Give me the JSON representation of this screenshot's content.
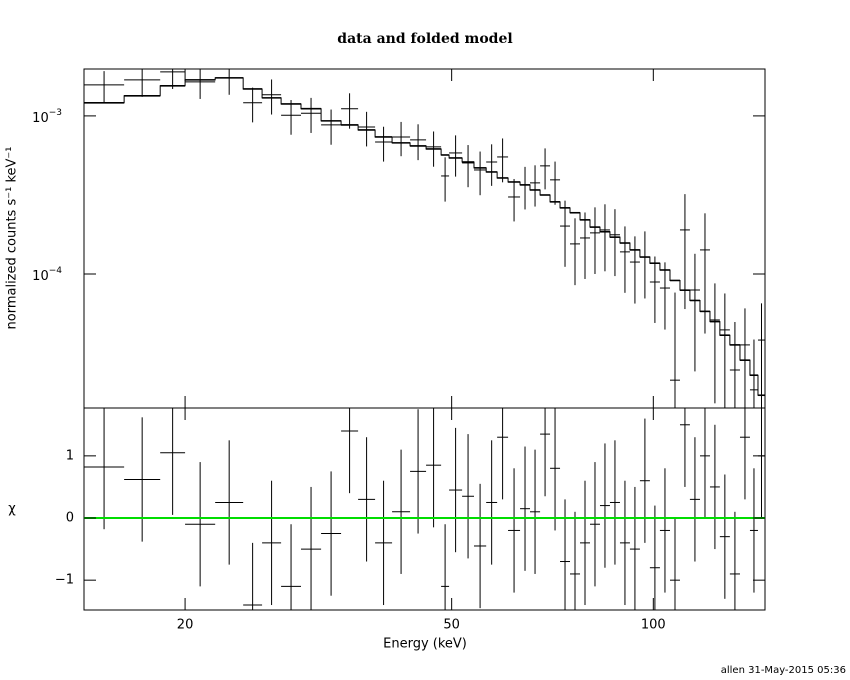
{
  "chart_data": [
    {
      "type": "spectrum",
      "title": "data and folded model",
      "y_label": "normalized counts s⁻¹ keV⁻¹",
      "xscale": "log",
      "yscale": "log",
      "xlim": [
        14.13,
        146.8
      ],
      "ylim": [
        1.42e-05,
        0.00198
      ],
      "yticks": [
        {
          "value": 0.001,
          "label": "10",
          "exponent": "−3"
        },
        {
          "value": 0.0001,
          "label": "10",
          "exponent": "−4"
        }
      ],
      "color": "#000000",
      "x_lo": [
        14.13,
        16.22,
        18.36,
        20,
        22.18,
        24.42,
        26.06,
        27.82,
        29.79,
        31.92,
        34.19,
        36.25,
        38.43,
        40.74,
        43.34,
        45.79,
        48.22,
        49.56,
        51.83,
        53.99,
        56.3,
        58.46,
        60.7,
        63.25,
        65.45,
        67.76,
        70.12,
        72.57,
        75.1,
        77.73,
        80.44,
        83.25,
        86.15,
        89.17,
        92.28,
        95.5,
        98.83,
        102.3,
        105.9,
        109.6,
        113.4,
        117.4,
        121.5,
        125.7,
        130.1,
        134.7,
        139.4,
        143.3
      ],
      "x_hi": [
        16.22,
        18.36,
        20,
        22.18,
        24.42,
        26.06,
        27.82,
        29.79,
        31.92,
        34.19,
        36.25,
        38.43,
        40.74,
        43.34,
        45.79,
        48.22,
        49.56,
        51.83,
        53.99,
        56.3,
        58.46,
        60.7,
        63.25,
        65.45,
        67.76,
        70.12,
        72.57,
        75.1,
        77.73,
        80.44,
        83.25,
        86.15,
        89.17,
        92.28,
        95.5,
        98.83,
        102.3,
        105.9,
        109.6,
        113.4,
        117.4,
        121.5,
        125.7,
        130.1,
        134.7,
        139.4,
        143.3,
        146.8
      ],
      "values": [
        0.00157,
        0.00169,
        0.0019,
        0.00164,
        0.00174,
        0.00121,
        0.00136,
        0.00101,
        0.00104,
        0.000877,
        0.00111,
        0.000851,
        0.000684,
        0.000736,
        0.000705,
        0.000637,
        0.000417,
        0.000583,
        0.000504,
        0.000455,
        0.000511,
        0.00055,
        0.000307,
        0.000366,
        0.000377,
        0.000483,
        0.000394,
        0.000201,
        0.000155,
        0.000169,
        0.000182,
        0.00019,
        0.000177,
        0.000138,
        0.000119,
        0.000128,
        8.9e-05,
        8.15e-05,
        2.13e-05,
        0.00019,
        7.92e-05,
        0.000142,
        5.12e-05,
        4.43e-05,
        2.47e-05,
        3.56e-05,
        1.85e-05,
        3.82e-05
      ],
      "errors": [
        0.00035,
        0.00037,
        0.00042,
        0.00036,
        0.00038,
        0.0003,
        0.00034,
        0.00025,
        0.00026,
        0.00022,
        0.00028,
        0.00021,
        0.00017,
        0.00018,
        0.00018,
        0.00016,
        0.00013,
        0.00017,
        0.00015,
        0.00014,
        0.00015,
        0.00017,
        9.2e-05,
        0.00011,
        0.00011,
        0.00014,
        0.00012,
        9e-05,
        7e-05,
        7.6e-05,
        8.2e-05,
        8.6e-05,
        8e-05,
        6.2e-05,
        5.4e-05,
        5.8e-05,
        4e-05,
        3.7e-05,
        5.5e-05,
        0.00013,
        5.5e-05,
        0.0001,
        3.6e-05,
        3.1e-05,
        2.5e-05,
        2.5e-05,
        2e-05,
        2.7e-05
      ],
      "model": [
        0.00121,
        0.00134,
        0.00155,
        0.00169,
        0.00174,
        0.00148,
        0.0013,
        0.00119,
        0.00111,
        0.00093,
        0.000877,
        0.000815,
        0.000736,
        0.000675,
        0.000646,
        0.000618,
        0.000566,
        0.000542,
        0.000511,
        0.000469,
        0.000442,
        0.000405,
        0.000382,
        0.000366,
        0.00034,
        0.000316,
        0.000286,
        0.000262,
        0.000244,
        0.00022,
        0.000198,
        0.000185,
        0.000171,
        0.000157,
        0.000142,
        0.000128,
        0.000117,
        0.000106,
        9.1e-05,
        7.9e-05,
        6.8e-05,
        5.8e-05,
        5e-05,
        4.1e-05,
        3.56e-05,
        2.85e-05,
        2.29e-05,
        1.71e-05
      ]
    },
    {
      "type": "residual",
      "x_label": "Energy (keV)",
      "y_label": "χ",
      "xscale": "log",
      "xlim": [
        14.13,
        146.8
      ],
      "xticks": [
        20,
        50,
        100
      ],
      "ylim": [
        -1.48,
        1.77
      ],
      "yticks": [
        1,
        0,
        {
          "value": -1,
          "label": "−1"
        }
      ],
      "reference_line": 0,
      "reference_color": "#00dd00",
      "color": "#000000",
      "values": [
        0.82,
        0.62,
        1.05,
        -0.1,
        0.25,
        -1.4,
        -0.4,
        -1.1,
        -0.5,
        -0.25,
        1.4,
        0.3,
        -0.4,
        0.1,
        0.75,
        0.85,
        -1.1,
        0.45,
        0.35,
        -0.45,
        0.25,
        1.3,
        -0.2,
        0.15,
        0.1,
        1.35,
        0.8,
        -0.7,
        -0.9,
        -0.4,
        -0.1,
        0.2,
        0.25,
        -0.4,
        -0.5,
        0.6,
        -0.8,
        -0.2,
        -1.0,
        1.5,
        0.3,
        1.0,
        0.5,
        -0.3,
        -0.9,
        1.3,
        -0.2,
        1.0
      ],
      "errors": [
        1,
        1,
        1,
        1,
        1,
        1,
        1,
        1,
        1,
        1,
        1,
        1,
        1,
        1,
        1,
        1,
        1,
        1,
        1,
        1,
        1,
        1,
        1,
        1,
        1,
        1,
        1,
        1,
        1,
        1,
        1,
        1,
        1,
        1,
        1,
        1,
        1,
        1,
        1,
        1,
        1,
        1,
        1,
        1,
        1,
        1,
        1,
        1
      ]
    }
  ],
  "footer": "allen 31-May-2015 05:36"
}
